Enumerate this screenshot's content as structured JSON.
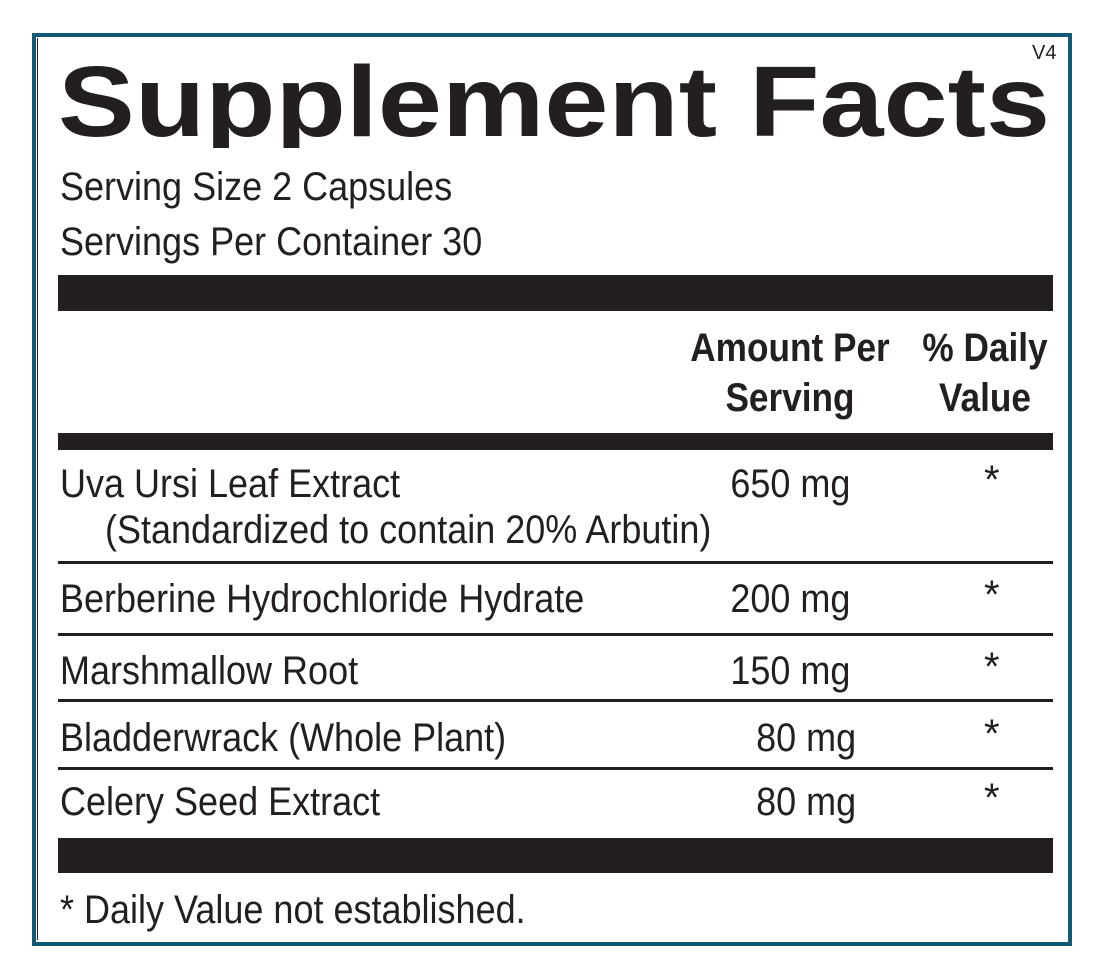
{
  "title": "Supplement Facts",
  "version": "V4",
  "serving_size": "Serving Size  2 Capsules",
  "servings_per_container": "Servings Per Container  30",
  "columns": {
    "amount": [
      "Amount Per",
      "Serving"
    ],
    "daily_value": [
      "% Daily",
      "Value"
    ]
  },
  "ingredients": [
    {
      "name": "Uva Ursi Leaf Extract",
      "note": "(Standardized to contain 20% Arbutin)",
      "amount": "650 mg",
      "dv": "*"
    },
    {
      "name": "Berberine Hydrochloride Hydrate",
      "amount": "200 mg",
      "dv": "*"
    },
    {
      "name": "Marshmallow Root",
      "amount": "150 mg",
      "dv": "*"
    },
    {
      "name": "Bladderwrack (Whole Plant)",
      "amount": "80 mg",
      "dv": "*"
    },
    {
      "name": "Celery Seed Extract",
      "amount": "80 mg",
      "dv": "*"
    }
  ],
  "footnote": "* Daily Value not established.",
  "colors": {
    "border": "#125a73",
    "text": "#231f20"
  }
}
